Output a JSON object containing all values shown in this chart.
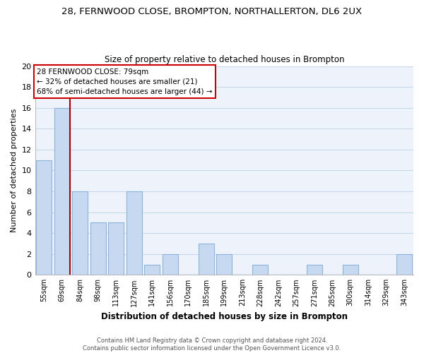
{
  "title": "28, FERNWOOD CLOSE, BROMPTON, NORTHALLERTON, DL6 2UX",
  "subtitle": "Size of property relative to detached houses in Brompton",
  "xlabel": "Distribution of detached houses by size in Brompton",
  "ylabel": "Number of detached properties",
  "bar_labels": [
    "55sqm",
    "69sqm",
    "84sqm",
    "98sqm",
    "113sqm",
    "127sqm",
    "141sqm",
    "156sqm",
    "170sqm",
    "185sqm",
    "199sqm",
    "213sqm",
    "228sqm",
    "242sqm",
    "257sqm",
    "271sqm",
    "285sqm",
    "300sqm",
    "314sqm",
    "329sqm",
    "343sqm"
  ],
  "bar_values": [
    11,
    16,
    8,
    5,
    5,
    8,
    1,
    2,
    0,
    3,
    2,
    0,
    1,
    0,
    0,
    1,
    0,
    1,
    0,
    0,
    2
  ],
  "bar_color": "#c6d9f0",
  "bar_edge_color": "#8cb3d9",
  "property_line_color": "#aa0000",
  "annotation_title": "28 FERNWOOD CLOSE: 79sqm",
  "annotation_line1": "← 32% of detached houses are smaller (21)",
  "annotation_line2": "68% of semi-detached houses are larger (44) →",
  "annotation_box_color": "#ffffff",
  "annotation_box_edge": "#cc0000",
  "ylim": [
    0,
    20
  ],
  "yticks": [
    0,
    2,
    4,
    6,
    8,
    10,
    12,
    14,
    16,
    18,
    20
  ],
  "footer1": "Contains HM Land Registry data © Crown copyright and database right 2024.",
  "footer2": "Contains public sector information licensed under the Open Government Licence v3.0.",
  "grid_color": "#c8d8ec",
  "bg_color": "#eef3fb"
}
